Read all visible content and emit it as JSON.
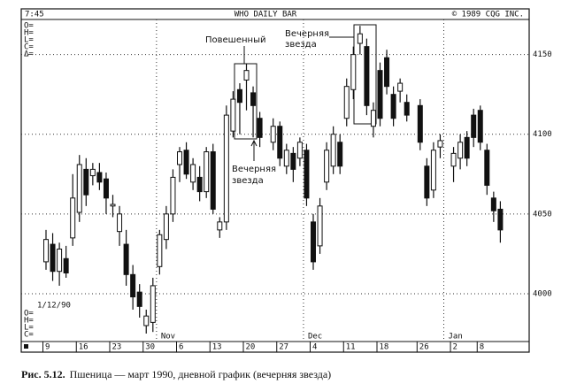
{
  "chart_data": {
    "type": "candlestick",
    "header": [
      "7:45",
      "WHO DAILY BAR",
      "© 1989 CQG INC."
    ],
    "top_fields": [
      "O=",
      "H=",
      "L=",
      "C=",
      "Δ="
    ],
    "bottom_fields": [
      "O=",
      "H=",
      "L=",
      "C="
    ],
    "date_label": "1/12/90",
    "categories": [
      "9",
      null,
      null,
      null,
      null,
      "16",
      null,
      null,
      null,
      null,
      "23",
      null,
      null,
      null,
      null,
      "30",
      null,
      null,
      null,
      null,
      "6",
      null,
      null,
      null,
      null,
      "13",
      null,
      null,
      null,
      null,
      "20",
      null,
      null,
      null,
      null,
      "27",
      null,
      null,
      null,
      null,
      "4",
      null,
      null,
      null,
      null,
      "11",
      null,
      null,
      null,
      null,
      "18",
      null,
      null,
      null,
      null,
      null,
      "26",
      null,
      null,
      null,
      null,
      "2",
      null,
      null,
      null,
      "8",
      null,
      null,
      null,
      null
    ],
    "month_labels": [
      {
        "label": "Nov",
        "category_index": 17
      },
      {
        "label": "Dec",
        "category_index": 39
      },
      {
        "label": "Jan",
        "category_index": 60
      }
    ],
    "open": [
      4020,
      4031,
      4014,
      4022,
      4035,
      4051,
      4078,
      4074,
      4076,
      4072,
      4055,
      4039,
      4031,
      4012,
      4001,
      3980,
      3982,
      4017,
      4034,
      4050,
      4081,
      4090,
      4070,
      4073,
      4064,
      4089,
      4040,
      4045,
      4102,
      4128,
      4134,
      4126,
      4110,
      null,
      4095,
      4105,
      4080,
      4088,
      4085,
      4090,
      4045,
      4030,
      4070,
      4080,
      4095,
      4110,
      4128,
      4157,
      4155,
      4105,
      4140,
      4148,
      4125,
      4127,
      4120,
      null,
      4118,
      4080,
      4065,
      4092,
      null,
      4080,
      4085,
      4098,
      4112,
      4115,
      4090,
      4060,
      4053,
      null
    ],
    "high": [
      4040,
      4038,
      4032,
      4030,
      4075,
      4087,
      4085,
      4082,
      4082,
      4076,
      4062,
      4055,
      4040,
      4018,
      4006,
      3990,
      4010,
      4040,
      4055,
      4078,
      4092,
      4095,
      4085,
      4080,
      4092,
      4094,
      4048,
      4118,
      4127,
      4132,
      4144,
      4130,
      4114,
      null,
      4110,
      4108,
      4094,
      4092,
      4098,
      4094,
      4050,
      4060,
      4095,
      4105,
      4100,
      4135,
      4155,
      4168,
      4160,
      4120,
      4145,
      4153,
      4130,
      4135,
      4125,
      null,
      4122,
      4085,
      4095,
      4100,
      null,
      4092,
      4100,
      4102,
      4116,
      4118,
      4094,
      4064,
      4058,
      null
    ],
    "low": [
      4015,
      4008,
      4005,
      4010,
      4030,
      4045,
      4055,
      4068,
      4065,
      4050,
      4048,
      4030,
      4005,
      3990,
      3985,
      3975,
      3976,
      4012,
      4028,
      4045,
      4070,
      4072,
      4065,
      4058,
      4060,
      4050,
      4035,
      4040,
      4098,
      4100,
      4115,
      4098,
      4092,
      null,
      4090,
      4080,
      4075,
      4070,
      4080,
      4055,
      4015,
      4025,
      4065,
      4075,
      4075,
      4105,
      4122,
      4150,
      4112,
      4098,
      4105,
      4125,
      4105,
      4120,
      4108,
      null,
      4090,
      4055,
      4060,
      4085,
      null,
      4070,
      4078,
      4080,
      4092,
      4090,
      4062,
      4045,
      4032,
      null
    ],
    "close": [
      4034,
      4014,
      4028,
      4013,
      4060,
      4081,
      4062,
      4078,
      4070,
      4060,
      4056,
      4050,
      4012,
      3998,
      3992,
      3986,
      4005,
      4037,
      4050,
      4073,
      4089,
      4075,
      4081,
      4064,
      4089,
      4053,
      4045,
      4112,
      4122,
      4120,
      4140,
      4118,
      4098,
      null,
      4105,
      4085,
      4090,
      4078,
      4095,
      4060,
      4020,
      4055,
      4090,
      4100,
      4080,
      4130,
      4150,
      4163,
      4118,
      4115,
      4110,
      4130,
      4110,
      4132,
      4112,
      null,
      4095,
      4060,
      4090,
      4096,
      null,
      4088,
      4095,
      4085,
      4098,
      4095,
      4068,
      4052,
      4040,
      null
    ],
    "ylim": [
      3970,
      4172
    ],
    "yticks": [
      4000,
      4050,
      4100,
      4150
    ],
    "grid": true,
    "up_color": "#ffffff",
    "down_color": "#111111",
    "annotations": [
      [
        "Повешенный"
      ],
      [
        "Вечерняя",
        "звезда"
      ],
      [
        "Вечерняя",
        "звезда"
      ]
    ],
    "caption": {
      "label": "Рис. 5.12.",
      "text": "Пшеница — март 1990, дневной график (вечерняя звезда)"
    }
  }
}
